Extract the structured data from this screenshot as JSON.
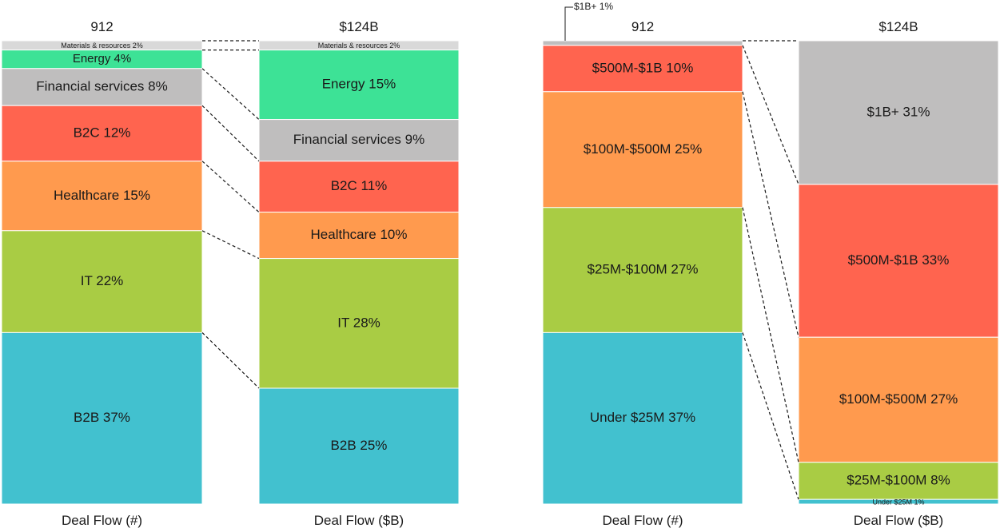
{
  "chart_data": [
    {
      "type": "bar",
      "stacked": true,
      "normalized": true,
      "breakdown": "sector",
      "bars": [
        {
          "xlabel": "Deal Flow (#)",
          "total_label": "912",
          "segments": [
            {
              "label": "Materials & resources",
              "value": 2,
              "text": "Materials & resources 2%",
              "color": "#d9d9d9"
            },
            {
              "label": "Energy",
              "value": 4,
              "text": "Energy 4%",
              "color": "#3de296"
            },
            {
              "label": "Financial services",
              "value": 8,
              "text": "Financial services 8%",
              "color": "#bfbebe"
            },
            {
              "label": "B2C",
              "value": 12,
              "text": "B2C 12%",
              "color": "#ff644f"
            },
            {
              "label": "Healthcare",
              "value": 15,
              "text": "Healthcare 15%",
              "color": "#ff9a4e"
            },
            {
              "label": "IT",
              "value": 22,
              "text": "IT 22%",
              "color": "#a9cc44"
            },
            {
              "label": "B2B",
              "value": 37,
              "text": "B2B 37%",
              "color": "#42c1cf"
            }
          ]
        },
        {
          "xlabel": "Deal Flow ($B)",
          "total_label": "$124B",
          "segments": [
            {
              "label": "Materials & resources",
              "value": 2,
              "text": "Materials & resources 2%",
              "color": "#d9d9d9"
            },
            {
              "label": "Energy",
              "value": 15,
              "text": "Energy 15%",
              "color": "#3de296"
            },
            {
              "label": "Financial services",
              "value": 9,
              "text": "Financial services 9%",
              "color": "#bfbebe"
            },
            {
              "label": "B2C",
              "value": 11,
              "text": "B2C 11%",
              "color": "#ff644f"
            },
            {
              "label": "Healthcare",
              "value": 10,
              "text": "Healthcare 10%",
              "color": "#ff9a4e"
            },
            {
              "label": "IT",
              "value": 28,
              "text": "IT 28%",
              "color": "#a9cc44"
            },
            {
              "label": "B2B",
              "value": 25,
              "text": "B2B 25%",
              "color": "#42c1cf"
            }
          ]
        }
      ]
    },
    {
      "type": "bar",
      "stacked": true,
      "normalized": true,
      "breakdown": "deal size",
      "bars": [
        {
          "xlabel": "Deal Flow (#)",
          "total_label": "912",
          "segments": [
            {
              "label": "$1B+",
              "value": 1,
              "text": "$1B+ 1%",
              "color": "#bfbebe",
              "callout": true
            },
            {
              "label": "$500M-$1B",
              "value": 10,
              "text": "$500M-$1B 10%",
              "color": "#ff644f"
            },
            {
              "label": "$100M-$500M",
              "value": 25,
              "text": "$100M-$500M 25%",
              "color": "#ff9a4e"
            },
            {
              "label": "$25M-$100M",
              "value": 27,
              "text": "$25M-$100M 27%",
              "color": "#a9cc44"
            },
            {
              "label": "Under $25M",
              "value": 37,
              "text": "Under $25M 37%",
              "color": "#42c1cf"
            }
          ]
        },
        {
          "xlabel": "Deal Flow ($B)",
          "total_label": "$124B",
          "segments": [
            {
              "label": "$1B+",
              "value": 31,
              "text": "$1B+ 31%",
              "color": "#bfbebe"
            },
            {
              "label": "$500M-$1B",
              "value": 33,
              "text": "$500M-$1B 33%",
              "color": "#ff644f"
            },
            {
              "label": "$100M-$500M",
              "value": 27,
              "text": "$100M-$500M 27%",
              "color": "#ff9a4e"
            },
            {
              "label": "$25M-$100M",
              "value": 8,
              "text": "$25M-$100M 8%",
              "color": "#a9cc44"
            },
            {
              "label": "Under $25M",
              "value": 1,
              "text": "Under $25M 1%",
              "color": "#42c1cf"
            }
          ]
        }
      ]
    }
  ]
}
